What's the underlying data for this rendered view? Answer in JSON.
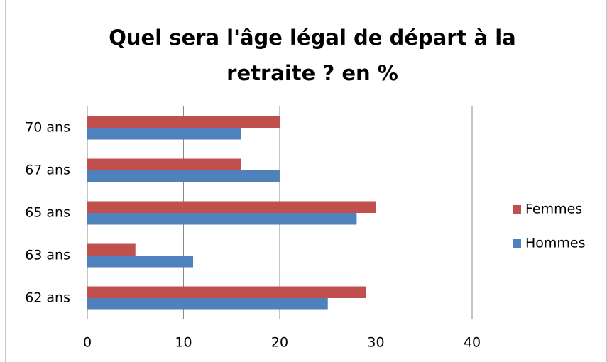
{
  "chart_data": {
    "type": "bar",
    "orientation": "horizontal",
    "title": "Quel sera l'âge légal de départ à la retraite ? en %",
    "categories": [
      "62 ans",
      "63 ans",
      "65 ans",
      "67 ans",
      "70 ans"
    ],
    "series": [
      {
        "name": "Femmes",
        "color": "#c0504d",
        "values": [
          29,
          5,
          30,
          16,
          20
        ]
      },
      {
        "name": "Hommes",
        "color": "#4f81bd",
        "values": [
          25,
          11,
          28,
          20,
          16
        ]
      }
    ],
    "xlim": [
      0,
      40
    ],
    "xticks": [
      0,
      10,
      20,
      30,
      40
    ],
    "grid": true,
    "legend": "right"
  }
}
